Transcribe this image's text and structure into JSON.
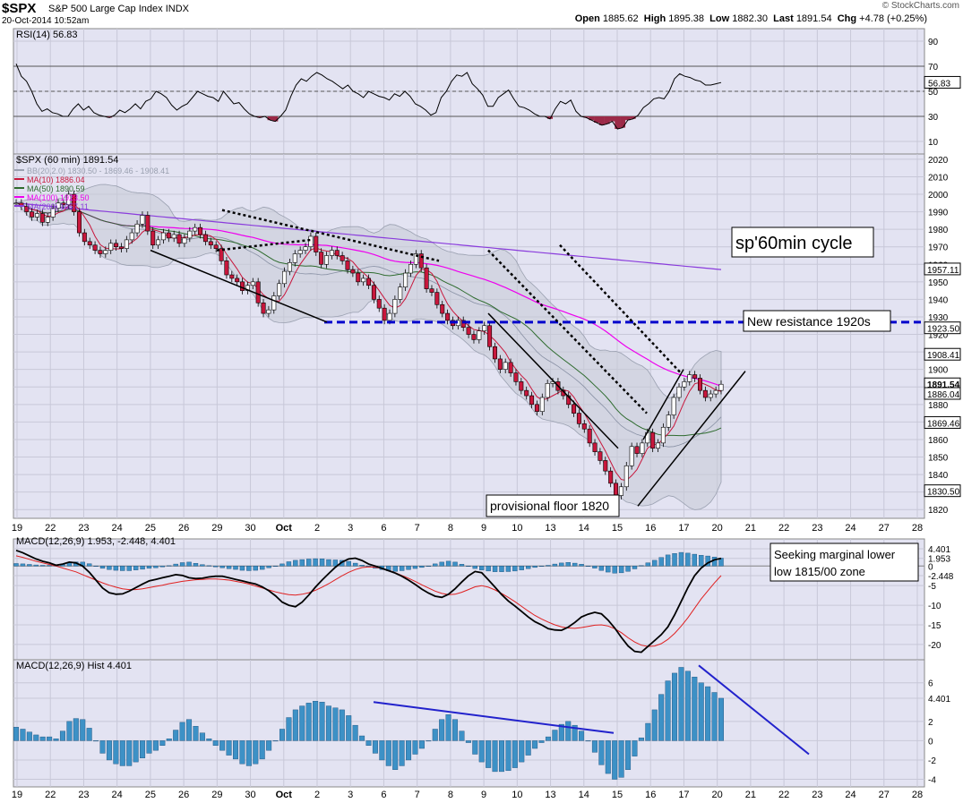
{
  "header": {
    "symbol": "$SPX",
    "name": "S&P 500 Large Cap Index",
    "exchange": "INDX",
    "date": "20-Oct-2014 10:52am",
    "brand": "© StockCharts.com",
    "open_label": "Open",
    "open": "1885.62",
    "high_label": "High",
    "high": "1895.38",
    "low_label": "Low",
    "low": "1882.30",
    "last_label": "Last",
    "last": "1891.54",
    "chg_label": "Chg",
    "chg": "+4.78 (+0.25%)"
  },
  "colors": {
    "background": "#ffffff",
    "panel": "#e3e3f2",
    "grid": "#c8c8d8",
    "candle_up": "#ffffff",
    "candle_down": "#c8173c",
    "bb": "#9aa0b0",
    "ma10": "#c8173c",
    "ma50": "#2e6b2e",
    "ma100": "#ee00ee",
    "ma200": "#8a3cdc",
    "hist": "#3d91c6",
    "resistance": "#0000cc",
    "divergence": "#2222cc"
  },
  "chart_data": [
    {
      "type": "line",
      "title": "RSI(14) 56.83",
      "ylim": [
        0,
        100
      ],
      "y_ticks": [
        90,
        70,
        50,
        30,
        10
      ],
      "overbought": 70,
      "oversold": 30,
      "midline": 50,
      "last_value": "56.83",
      "series": [
        {
          "values": [
            72,
            62,
            58,
            50,
            40,
            34,
            36,
            33,
            32,
            30,
            30,
            36,
            40,
            35,
            38,
            33,
            31,
            30,
            29,
            31,
            35,
            33,
            36,
            40,
            36,
            42,
            44,
            50,
            48,
            45,
            39,
            35,
            38,
            40,
            45,
            50,
            48,
            46,
            45,
            42,
            50,
            45,
            40,
            41,
            36,
            32,
            30,
            29,
            30,
            27,
            26,
            30,
            35,
            46,
            55,
            60,
            58,
            62,
            65,
            63,
            60,
            58,
            55,
            52,
            55,
            50,
            48,
            45,
            50,
            48,
            46,
            45,
            43,
            48,
            46,
            50,
            46,
            40,
            38,
            35,
            31,
            33,
            45,
            50,
            58,
            63,
            62,
            65,
            56,
            52,
            47,
            38,
            38,
            45,
            48,
            51,
            44,
            38,
            37,
            35,
            32,
            30,
            30,
            28,
            36,
            42,
            40,
            43,
            34,
            30,
            29,
            27,
            25,
            23,
            24,
            26,
            20,
            21,
            27,
            28,
            31,
            37,
            40,
            44,
            45,
            44,
            50,
            60,
            64,
            62,
            61,
            59,
            58,
            55,
            55,
            56,
            57
          ]
        }
      ]
    },
    {
      "type": "line",
      "title": "$SPX (60 min) 1891.54",
      "legend": [
        "BB(20,2.0) 1830.50 - 1869.46 - 1908.41",
        "MA(10) 1886.04",
        "MA(50) 1890.59",
        "MA(100) 1923.50",
        "MA(200) 1957.11"
      ],
      "ylim": [
        1815,
        2023
      ],
      "y_ticks": [
        2020,
        2010,
        2000,
        1990,
        1980,
        1970,
        1960,
        1950,
        1940,
        1930,
        1920,
        1910,
        1900,
        1890,
        1880,
        1870,
        1860,
        1850,
        1840,
        1830,
        1820
      ],
      "value_badges": [
        "1957.11",
        "1923.50",
        "1908.41",
        "1891.54",
        "1886.04",
        "1869.46",
        "1830.50"
      ],
      "x_tick_labels": [
        "19",
        "22",
        "23",
        "24",
        "25",
        "26",
        "29",
        "30",
        "Oct",
        "2",
        "3",
        "6",
        "7",
        "8",
        "9",
        "10",
        "13",
        "14",
        "15",
        "16",
        "17",
        "20",
        "21",
        "22",
        "23",
        "24",
        "27",
        "28"
      ],
      "series": [
        {
          "name": "$SPX",
          "values": [
            1995,
            1993,
            1990,
            1987,
            1989,
            1984,
            1987,
            1992,
            1995,
            1994,
            2000,
            1990,
            1978,
            1973,
            1971,
            1968,
            1966,
            1968,
            1972,
            1970,
            1969,
            1974,
            1978,
            1983,
            1988,
            1979,
            1971,
            1974,
            1978,
            1975,
            1977,
            1972,
            1975,
            1979,
            1981,
            1977,
            1973,
            1971,
            1969,
            1962,
            1954,
            1952,
            1950,
            1945,
            1948,
            1950,
            1938,
            1932,
            1934,
            1942,
            1949,
            1956,
            1961,
            1966,
            1968,
            1970,
            1976,
            1967,
            1960,
            1965,
            1968,
            1965,
            1962,
            1957,
            1955,
            1950,
            1952,
            1948,
            1940,
            1935,
            1928,
            1932,
            1940,
            1947,
            1955,
            1960,
            1966,
            1958,
            1946,
            1944,
            1937,
            1932,
            1928,
            1925,
            1928,
            1924,
            1920,
            1917,
            1922,
            1925,
            1913,
            1906,
            1900,
            1904,
            1898,
            1893,
            1888,
            1885,
            1880,
            1876,
            1884,
            1892,
            1893,
            1888,
            1885,
            1880,
            1875,
            1869,
            1866,
            1858,
            1853,
            1848,
            1842,
            1835,
            1828,
            1833,
            1845,
            1856,
            1852,
            1858,
            1864,
            1855,
            1858,
            1867,
            1874,
            1884,
            1890,
            1893,
            1897,
            1895,
            1888,
            1884,
            1886,
            1888,
            1891.54
          ]
        }
      ],
      "annotations": [
        "sp'60min cycle",
        "New resistance 1920s",
        "provisional floor 1820"
      ],
      "resistance_level": 1927
    },
    {
      "type": "line",
      "title": "MACD(12,26,9) 1.953, -2.448, 4.401",
      "ylim": [
        -23,
        6
      ],
      "y_ticks": [
        4.401,
        1.953,
        0,
        -2.448,
        -5,
        -10,
        -15,
        -20
      ],
      "y_tick_labels": [
        "4.401",
        "1.953",
        "0",
        "-2.448",
        "-5",
        "-10",
        "-15",
        "-20"
      ],
      "series": [
        {
          "name": "MACD",
          "values": [
            4.0,
            3.4,
            2.6,
            1.8,
            1.2,
            0.8,
            0.2,
            0.5,
            1.0,
            0.8,
            0.0,
            -1.6,
            -3.6,
            -5.6,
            -6.8,
            -7.2,
            -7.1,
            -6.4,
            -5.5,
            -4.6,
            -3.8,
            -3.4,
            -3.0,
            -2.6,
            -2.2,
            -2.4,
            -3.0,
            -3.2,
            -3.1,
            -2.8,
            -2.6,
            -2.6,
            -3.0,
            -3.4,
            -3.8,
            -4.2,
            -4.6,
            -5.3,
            -6.3,
            -7.6,
            -9.2,
            -10.0,
            -10.4,
            -9.2,
            -7.4,
            -5.4,
            -3.6,
            -1.9,
            -0.3,
            1.0,
            1.8,
            2.0,
            1.4,
            0.5,
            0.0,
            -0.6,
            -1.2,
            -1.8,
            -2.6,
            -3.6,
            -4.7,
            -5.9,
            -6.9,
            -7.7,
            -8.0,
            -7.2,
            -5.8,
            -4.1,
            -2.5,
            -1.4,
            -1.7,
            -3.5,
            -5.4,
            -7.3,
            -8.9,
            -10.2,
            -11.6,
            -13.0,
            -14.2,
            -15.0,
            -16.0,
            -16.3,
            -16.4,
            -15.6,
            -14.4,
            -13.0,
            -12.3,
            -11.8,
            -12.2,
            -13.8,
            -15.8,
            -18.2,
            -20.4,
            -21.8,
            -22.0,
            -20.5,
            -19.0,
            -17.5,
            -15.5,
            -12.5,
            -9.0,
            -5.5,
            -2.5,
            -0.5,
            0.8,
            1.6,
            1.953
          ]
        },
        {
          "name": "Signal",
          "values": [
            2.6,
            2.2,
            1.7,
            1.2,
            0.8,
            0.4,
            0.0,
            -0.5,
            -1.0,
            -1.5,
            -2.2,
            -2.9,
            -3.6,
            -4.3,
            -4.9,
            -5.4,
            -5.8,
            -6.0,
            -6.0,
            -5.8,
            -5.5,
            -5.2,
            -4.9,
            -4.5,
            -4.2,
            -3.9,
            -3.7,
            -3.5,
            -3.4,
            -3.3,
            -3.3,
            -3.4,
            -3.6,
            -3.9,
            -4.2,
            -4.6,
            -5.1,
            -5.6,
            -6.1,
            -6.6,
            -7.0,
            -7.3,
            -7.4,
            -7.2,
            -6.8,
            -6.2,
            -5.4,
            -4.5,
            -3.5,
            -2.5,
            -1.6,
            -0.9,
            -0.4,
            -0.2,
            -0.3,
            -0.6,
            -1.1,
            -1.7,
            -2.4,
            -3.1,
            -3.9,
            -4.8,
            -5.6,
            -6.4,
            -7.0,
            -7.3,
            -7.2,
            -6.7,
            -6.0,
            -5.3,
            -5.0,
            -5.4,
            -6.1,
            -7.0,
            -8.0,
            -9.1,
            -10.3,
            -11.5,
            -12.6,
            -13.5,
            -14.3,
            -15.0,
            -15.5,
            -15.8,
            -15.9,
            -15.7,
            -15.4,
            -15.1,
            -15.0,
            -15.3,
            -16.0,
            -17.0,
            -18.3,
            -19.4,
            -20.2,
            -20.5,
            -20.4,
            -19.8,
            -18.7,
            -17.2,
            -15.3,
            -13.2,
            -10.8,
            -8.4,
            -6.3,
            -4.3,
            -2.448
          ]
        }
      ],
      "annotations": [
        "Seeking marginal lower",
        "low 1815/00 zone"
      ]
    },
    {
      "type": "bar",
      "title": "MACD(12,26,9) Hist 4.401",
      "ylim": [
        -4.6,
        8.2
      ],
      "y_ticks": [
        6,
        4.401,
        2,
        0,
        -2,
        -4
      ],
      "y_tick_labels": [
        "6",
        "4.401",
        "2",
        "0",
        "-2",
        "-4"
      ],
      "series": [
        {
          "name": "Hist",
          "values": [
            1.4,
            1.2,
            0.9,
            0.6,
            0.4,
            0.4,
            0.2,
            1.0,
            2.0,
            2.3,
            2.2,
            1.3,
            0.0,
            -1.3,
            -2.0,
            -2.4,
            -2.6,
            -2.6,
            -2.2,
            -1.8,
            -1.3,
            -1.0,
            -0.5,
            0.2,
            1.1,
            1.9,
            2.2,
            1.5,
            0.8,
            0.2,
            -0.5,
            -1.0,
            -1.5,
            -1.9,
            -2.4,
            -2.6,
            -2.4,
            -1.9,
            -1.0,
            0.0,
            1.2,
            2.4,
            3.2,
            3.6,
            3.9,
            4.1,
            4.0,
            3.6,
            3.4,
            3.2,
            2.6,
            1.6,
            0.5,
            -0.5,
            -1.3,
            -2.0,
            -2.6,
            -3.0,
            -2.6,
            -2.0,
            -1.4,
            -0.8,
            0.0,
            1.2,
            2.2,
            2.7,
            2.2,
            1.0,
            -0.2,
            -1.4,
            -2.2,
            -2.8,
            -3.2,
            -3.2,
            -3.1,
            -2.8,
            -2.2,
            -1.5,
            -0.8,
            -0.2,
            0.4,
            1.1,
            1.7,
            2.0,
            1.6,
            1.0,
            0.0,
            -1.2,
            -2.5,
            -3.4,
            -4.0,
            -3.8,
            -3.0,
            -1.6,
            0.3,
            1.8,
            3.2,
            4.8,
            6.2,
            7.0,
            7.6,
            7.2,
            6.6,
            6.0,
            5.6,
            5.0,
            4.401
          ]
        }
      ],
      "x_tick_labels": [
        "19",
        "22",
        "23",
        "24",
        "25",
        "26",
        "29",
        "30",
        "Oct",
        "2",
        "3",
        "6",
        "7",
        "8",
        "9",
        "10",
        "13",
        "14",
        "15",
        "16",
        "17",
        "20",
        "21",
        "22",
        "23",
        "24",
        "27",
        "28"
      ]
    }
  ]
}
